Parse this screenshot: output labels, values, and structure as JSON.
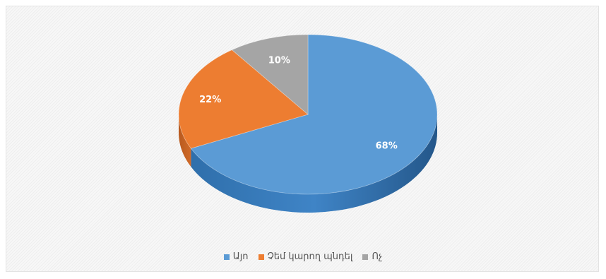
{
  "chart_data": {
    "type": "pie",
    "title": "",
    "categories": [
      "Այո",
      "Չեմ կարող պնդել",
      "Ոչ"
    ],
    "values": [
      68,
      22,
      10
    ],
    "labels": [
      "68%",
      "22%",
      "10%"
    ],
    "colors": [
      "#5b9bd5",
      "#ed7d31",
      "#a5a5a5"
    ],
    "legend_position": "bottom"
  }
}
